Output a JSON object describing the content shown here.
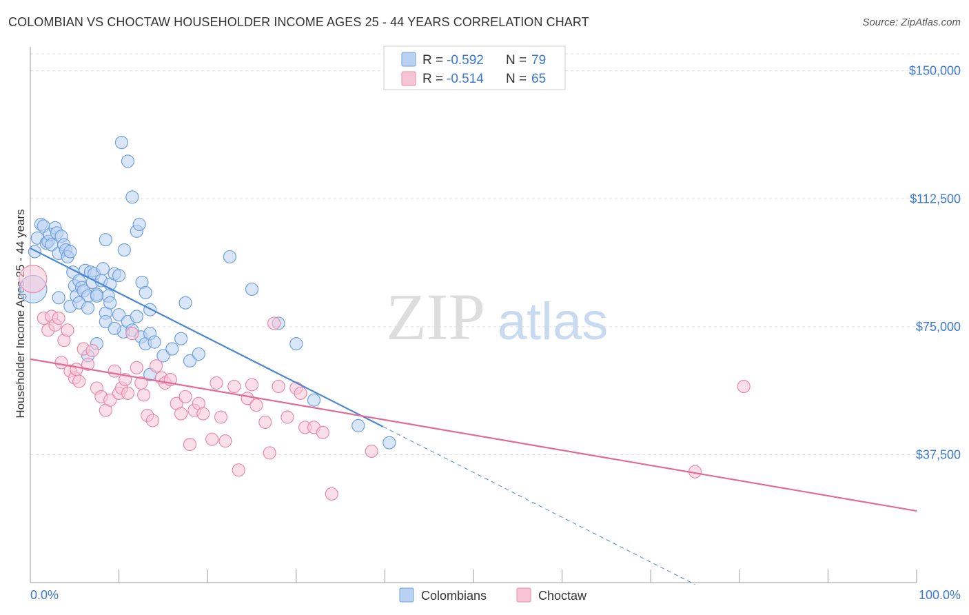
{
  "title": "COLOMBIAN VS CHOCTAW HOUSEHOLDER INCOME AGES 25 - 44 YEARS CORRELATION CHART",
  "source": "Source: ZipAtlas.com",
  "watermark": {
    "zip": "ZIP",
    "atlas": "atlas"
  },
  "legend_top": [
    {
      "r_label": "R =",
      "r_value": "-0.592",
      "n_label": "N =",
      "n_value": "79",
      "color": "#6f9fe0",
      "fill": "#b9d1f3"
    },
    {
      "r_label": "R =",
      "r_value": "-0.514",
      "n_label": "N =",
      "n_value": "65",
      "color": "#e88aaa",
      "fill": "#f7c4d5"
    }
  ],
  "legend_bottom": [
    {
      "label": "Colombians",
      "color": "#6f9fe0",
      "fill": "#b9d1f3"
    },
    {
      "label": "Choctaw",
      "color": "#e88aaa",
      "fill": "#f7c4d5"
    }
  ],
  "chart_data": {
    "type": "scatter",
    "title": "COLOMBIAN VS CHOCTAW HOUSEHOLDER INCOME AGES 25 - 44 YEARS CORRELATION CHART",
    "xlabel": "",
    "ylabel": "Householder Income Ages 25 - 44 years",
    "xlim": [
      0,
      100
    ],
    "ylim": [
      0,
      155000
    ],
    "x_tick_labels": [
      "0.0%",
      "100.0%"
    ],
    "y_ticks": [
      37500,
      75000,
      112500,
      150000
    ],
    "y_tick_labels": [
      "$37,500",
      "$75,000",
      "$112,500",
      "$150,000"
    ],
    "grid": true,
    "legend_position": "top-center",
    "series": [
      {
        "name": "Colombians",
        "color": "#4a86d8",
        "stroke": "#6f9fe0",
        "fill": "#b9d1f3",
        "trend": {
          "x0": 0,
          "y0": 98000,
          "x1": 39.8,
          "y1": 45700,
          "dash_to_x": 75
        },
        "points": [
          [
            0.3,
            86000
          ],
          [
            0.5,
            97000
          ],
          [
            0.8,
            101000
          ],
          [
            1.2,
            105000
          ],
          [
            1.5,
            104500
          ],
          [
            1.8,
            99500
          ],
          [
            2.0,
            100000
          ],
          [
            2.2,
            102000
          ],
          [
            2.4,
            99000
          ],
          [
            2.8,
            104000
          ],
          [
            3.0,
            102500
          ],
          [
            3.2,
            96500
          ],
          [
            3.5,
            101500
          ],
          [
            3.8,
            99000
          ],
          [
            4.0,
            97500
          ],
          [
            4.2,
            95500
          ],
          [
            4.5,
            97000
          ],
          [
            4.8,
            91000
          ],
          [
            5.0,
            87000
          ],
          [
            5.2,
            84000
          ],
          [
            5.5,
            88500
          ],
          [
            5.8,
            86500
          ],
          [
            6.0,
            85500
          ],
          [
            6.2,
            91500
          ],
          [
            6.5,
            84000
          ],
          [
            6.8,
            91000
          ],
          [
            7.0,
            88000
          ],
          [
            7.2,
            90500
          ],
          [
            7.5,
            84500
          ],
          [
            8.0,
            88500
          ],
          [
            8.2,
            92000
          ],
          [
            8.5,
            100500
          ],
          [
            8.8,
            84000
          ],
          [
            9.0,
            87500
          ],
          [
            9.5,
            90500
          ],
          [
            10.0,
            90000
          ],
          [
            10.3,
            129000
          ],
          [
            10.6,
            97500
          ],
          [
            11.0,
            123500
          ],
          [
            11.5,
            113000
          ],
          [
            12.0,
            103000
          ],
          [
            12.3,
            105000
          ],
          [
            12.6,
            88000
          ],
          [
            13.0,
            85000
          ],
          [
            13.5,
            80000
          ],
          [
            3.2,
            83500
          ],
          [
            4.5,
            81000
          ],
          [
            5.5,
            82000
          ],
          [
            6.5,
            80500
          ],
          [
            7.5,
            84000
          ],
          [
            8.5,
            79000
          ],
          [
            9.0,
            82000
          ],
          [
            10.0,
            78500
          ],
          [
            10.5,
            73500
          ],
          [
            11.0,
            76500
          ],
          [
            11.5,
            74000
          ],
          [
            12.0,
            78000
          ],
          [
            12.5,
            72000
          ],
          [
            13.0,
            70000
          ],
          [
            13.5,
            73000
          ],
          [
            14.0,
            70500
          ],
          [
            15.0,
            66500
          ],
          [
            16.0,
            68500
          ],
          [
            17.0,
            71500
          ],
          [
            18.0,
            65000
          ],
          [
            19.0,
            67000
          ],
          [
            6.5,
            66500
          ],
          [
            7.5,
            70000
          ],
          [
            8.5,
            76500
          ],
          [
            9.5,
            74500
          ],
          [
            13.5,
            61000
          ],
          [
            17.5,
            82000
          ],
          [
            22.5,
            95500
          ],
          [
            25.0,
            86000
          ],
          [
            28.0,
            76000
          ],
          [
            30.0,
            70000
          ],
          [
            32.0,
            53500
          ],
          [
            37.0,
            46000
          ],
          [
            40.5,
            41000
          ]
        ]
      },
      {
        "name": "Choctaw",
        "color": "#e06c96",
        "stroke": "#e88aaa",
        "fill": "#f7c4d5",
        "trend": {
          "x0": 0,
          "y0": 65500,
          "x1": 100,
          "y1": 21000
        },
        "points": [
          [
            0.3,
            89000
          ],
          [
            1.5,
            77500
          ],
          [
            2.0,
            74000
          ],
          [
            2.4,
            78000
          ],
          [
            2.8,
            75500
          ],
          [
            3.2,
            77500
          ],
          [
            3.5,
            64500
          ],
          [
            3.8,
            71000
          ],
          [
            4.2,
            74000
          ],
          [
            4.5,
            62000
          ],
          [
            5.0,
            60000
          ],
          [
            5.2,
            62500
          ],
          [
            5.5,
            59000
          ],
          [
            6.0,
            68500
          ],
          [
            6.5,
            64000
          ],
          [
            7.0,
            68000
          ],
          [
            7.5,
            57000
          ],
          [
            8.0,
            54500
          ],
          [
            8.5,
            50500
          ],
          [
            9.0,
            53500
          ],
          [
            9.5,
            62000
          ],
          [
            10.0,
            55500
          ],
          [
            10.3,
            57000
          ],
          [
            10.7,
            59500
          ],
          [
            11.0,
            55500
          ],
          [
            11.5,
            73000
          ],
          [
            12.0,
            63000
          ],
          [
            12.5,
            58500
          ],
          [
            12.8,
            55000
          ],
          [
            13.2,
            49000
          ],
          [
            13.8,
            47500
          ],
          [
            14.2,
            63500
          ],
          [
            14.8,
            60000
          ],
          [
            15.2,
            58500
          ],
          [
            15.8,
            59500
          ],
          [
            16.5,
            52500
          ],
          [
            17.0,
            49500
          ],
          [
            17.5,
            54500
          ],
          [
            18.0,
            40500
          ],
          [
            18.5,
            50500
          ],
          [
            19.0,
            52500
          ],
          [
            19.5,
            49500
          ],
          [
            20.5,
            42000
          ],
          [
            21.0,
            58500
          ],
          [
            21.5,
            48500
          ],
          [
            22.0,
            41500
          ],
          [
            23.0,
            57500
          ],
          [
            23.5,
            33000
          ],
          [
            24.5,
            54000
          ],
          [
            25.0,
            58000
          ],
          [
            25.5,
            52000
          ],
          [
            26.5,
            47000
          ],
          [
            27.0,
            38000
          ],
          [
            27.5,
            76000
          ],
          [
            28.0,
            57500
          ],
          [
            29.0,
            48500
          ],
          [
            30.0,
            57000
          ],
          [
            30.5,
            55500
          ],
          [
            31.0,
            45500
          ],
          [
            32.0,
            45500
          ],
          [
            33.0,
            44000
          ],
          [
            34.0,
            26000
          ],
          [
            38.5,
            38500
          ],
          [
            75.0,
            32500
          ],
          [
            80.5,
            57500
          ]
        ]
      }
    ]
  }
}
